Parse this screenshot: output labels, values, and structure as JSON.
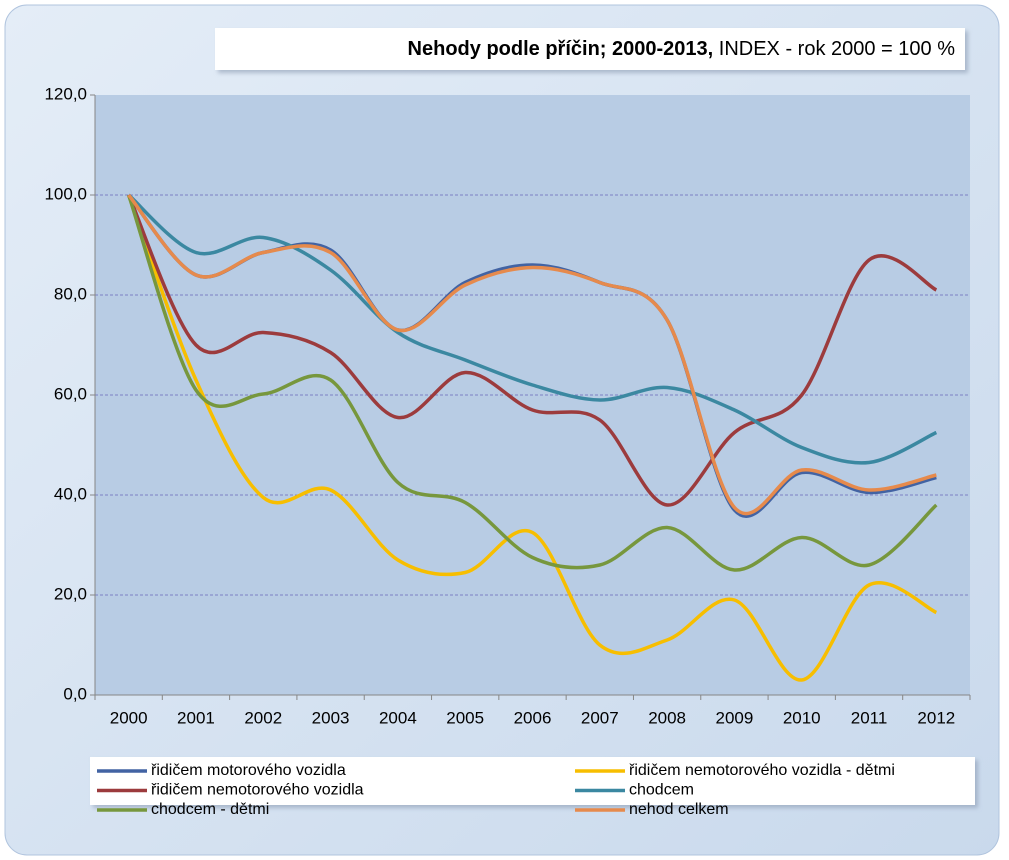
{
  "chart_data": {
    "type": "line",
    "title": "Nehody podle příčin; 2000-2013,",
    "subtitle": "INDEX - rok 2000 = 100 %",
    "categories": [
      "2000",
      "2001",
      "2002",
      "2003",
      "2004",
      "2005",
      "2006",
      "2007",
      "2008",
      "2009",
      "2010",
      "2011",
      "2012"
    ],
    "series": [
      {
        "name": "řidičem motorového vozidla",
        "color": "#4263a3",
        "values": [
          100,
          84,
          88.5,
          89,
          73,
          82.5,
          86,
          82.5,
          75,
          37,
          44.5,
          40.5,
          43.5
        ]
      },
      {
        "name": "řidičem nemotorového vozidla - dětmi",
        "color": "#f7be00",
        "values": [
          100,
          63,
          39.5,
          41,
          27,
          24.5,
          32.5,
          10,
          11,
          19,
          3,
          22,
          16.5
        ]
      },
      {
        "name": "řidičem nemotorového vozidla",
        "color": "#9c3b3d",
        "values": [
          100,
          70,
          72.5,
          68.5,
          55.5,
          64.5,
          57,
          55,
          38,
          52.5,
          60,
          87,
          81
        ]
      },
      {
        "name": "chodcem",
        "color": "#3b88a1",
        "values": [
          100,
          88.5,
          91.5,
          85,
          72.5,
          67,
          62,
          59,
          61.5,
          57,
          49.5,
          46.5,
          52.5
        ]
      },
      {
        "name": "chodcem - dětmi",
        "color": "#77973d",
        "values": [
          100,
          61,
          60.2,
          63,
          42.5,
          38.5,
          27.5,
          26,
          33.5,
          25,
          31.5,
          26,
          38
        ]
      },
      {
        "name": "nehod celkem",
        "color": "#e68a4c",
        "values": [
          100,
          84,
          88.5,
          88.5,
          73,
          82,
          85.5,
          82.5,
          75,
          37.5,
          45,
          41,
          44
        ]
      }
    ],
    "ylim": [
      0,
      120
    ],
    "yticks": [
      {
        "value": 0,
        "label": "0,0"
      },
      {
        "value": 20,
        "label": "20,0"
      },
      {
        "value": 40,
        "label": "40,0"
      },
      {
        "value": 60,
        "label": "60,0"
      },
      {
        "value": 80,
        "label": "80,0"
      },
      {
        "value": 100,
        "label": "100,0"
      },
      {
        "value": 120,
        "label": "120,0"
      }
    ],
    "grid": true,
    "legend": "bottom"
  }
}
